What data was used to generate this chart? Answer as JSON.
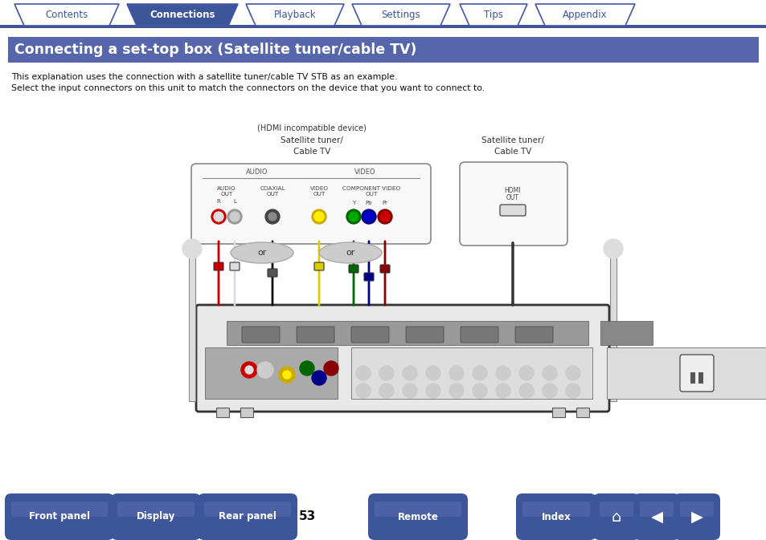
{
  "tab_labels": [
    "Contents",
    "Connections",
    "Playback",
    "Settings",
    "Tips",
    "Appendix"
  ],
  "active_tab": 1,
  "tab_color_active": "#3d5599",
  "tab_color_inactive": "#ffffff",
  "tab_border_color": "#4455aa",
  "tab_text_color_active": "#ffffff",
  "tab_text_color_inactive": "#3d5599",
  "tab_underline_color": "#3d5599",
  "title": "Connecting a set-top box (Satellite tuner/cable TV)",
  "title_bg": "#5566aa",
  "title_text_color": "#ffffff",
  "body_line1": "This explanation uses the connection with a satellite tuner/cable TV STB as an example.",
  "body_line2": "Select the input connectors on this unit to match the connectors on the device that you want to connect to.",
  "body_text_color": "#111111",
  "page_number": "53",
  "bottom_btn_color": "#3d5599",
  "bottom_btn_text_color": "#ffffff",
  "bg_color": "#ffffff"
}
